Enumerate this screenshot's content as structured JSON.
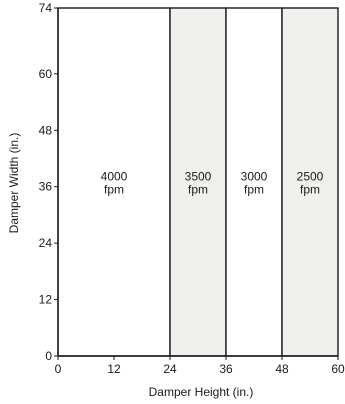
{
  "chart_data": {
    "type": "area",
    "xlabel": "Damper Height (in.)",
    "ylabel": "Damper Width (in.)",
    "xlim": [
      0,
      60
    ],
    "ylim": [
      0,
      74
    ],
    "x_ticks": [
      0,
      12,
      24,
      36,
      48,
      60
    ],
    "y_ticks": [
      0,
      12,
      24,
      36,
      48,
      60,
      74
    ],
    "grid": false,
    "shaded_fill": "#f2f0ec",
    "regions": [
      {
        "x_range": [
          0,
          24
        ],
        "label_value": "4000",
        "label_unit": "fpm",
        "shaded": false
      },
      {
        "x_range": [
          24,
          36
        ],
        "label_value": "3500",
        "label_unit": "fpm",
        "shaded": true
      },
      {
        "x_range": [
          36,
          48
        ],
        "label_value": "3000",
        "label_unit": "fpm",
        "shaded": false
      },
      {
        "x_range": [
          48,
          60
        ],
        "label_value": "2500",
        "label_unit": "fpm",
        "shaded": true
      }
    ]
  }
}
